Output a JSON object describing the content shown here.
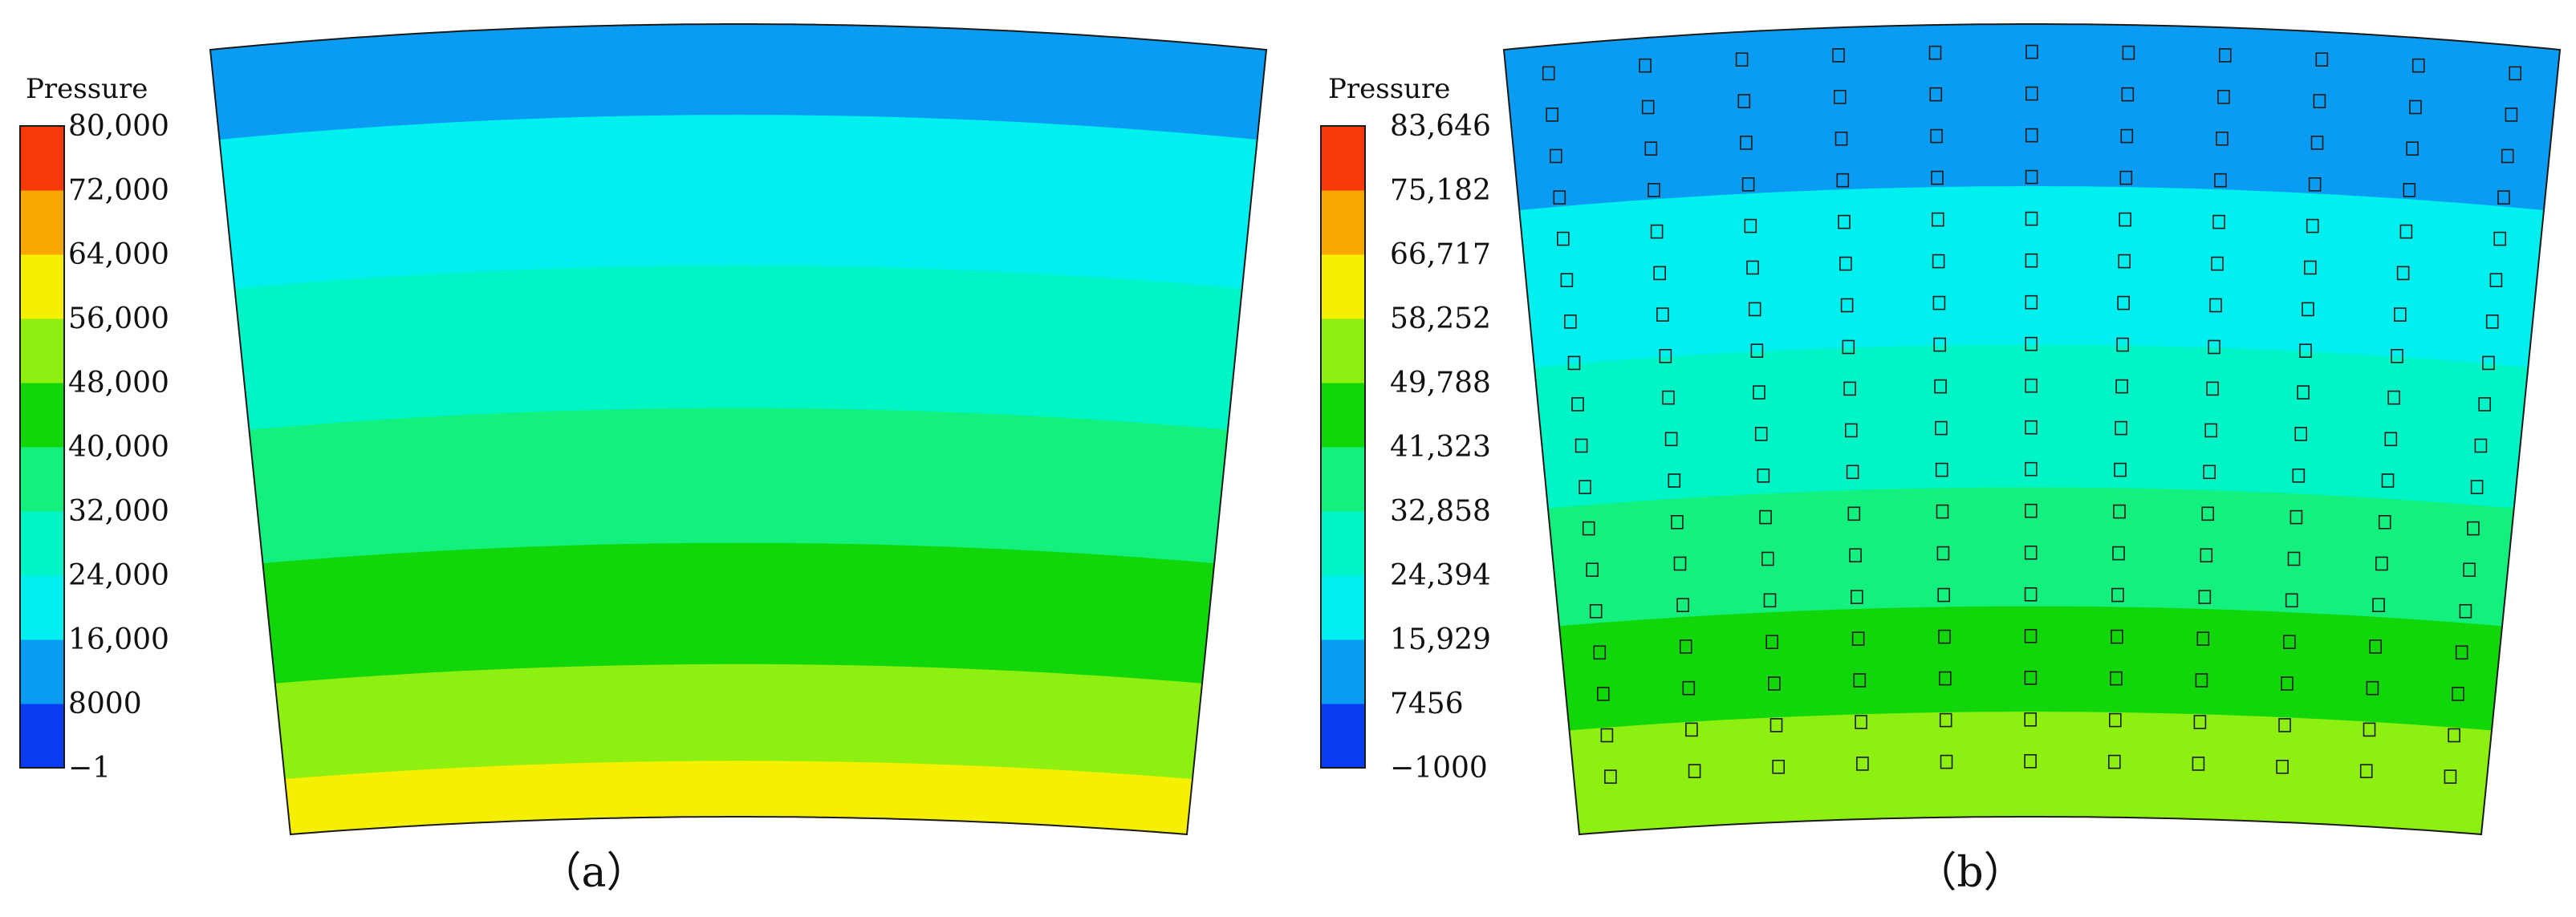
{
  "legend_title": "Pressure",
  "palette": [
    "#0a3cf2",
    "#0a9cf2",
    "#00f0f0",
    "#00f5c6",
    "#14f07e",
    "#10d60a",
    "#8ef010",
    "#f5f000",
    "#f8a600",
    "#f83a0a"
  ],
  "outline_color": "#1a1a1a",
  "panels": [
    {
      "label": "（a）",
      "legend_ticks": [
        "80,000",
        "72,000",
        "64,000",
        "56,000",
        "48,000",
        "40,000",
        "32,000",
        "24,000",
        "16,000",
        "8000",
        "−1"
      ],
      "field_bands": [
        1,
        2,
        3,
        4,
        5,
        6,
        7
      ],
      "has_cells": false
    },
    {
      "label": "（b）",
      "legend_ticks": [
        "83,646",
        "75,182",
        "66,717",
        "58,252",
        "49,788",
        "41,323",
        "32,858",
        "24,394",
        "15,929",
        "7456",
        "−1000"
      ],
      "field_bands": [
        1,
        2,
        3,
        4,
        5,
        6
      ],
      "has_cells": true
    }
  ]
}
